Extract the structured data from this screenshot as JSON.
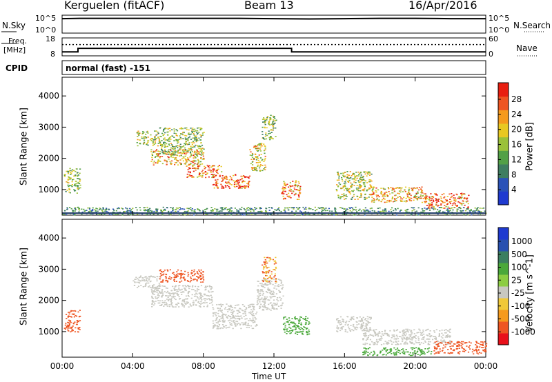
{
  "header": {
    "station": "Kerguelen (fitACF)",
    "beam": "Beam 13",
    "date": "16/Apr/2016"
  },
  "noise_panel": {
    "left_label": "N.Sky",
    "left_ticks": [
      "10^5",
      "10^0"
    ],
    "right_label": "N.Search",
    "right_ticks": [
      "10^5",
      "10^0"
    ],
    "series": {
      "sky": [
        [
          0,
          4.3
        ],
        [
          1,
          4.4
        ],
        [
          2,
          4.4
        ],
        [
          3,
          4.4
        ],
        [
          4,
          4.4
        ],
        [
          6,
          4.4
        ],
        [
          8,
          4.4
        ],
        [
          10,
          4.4
        ],
        [
          12,
          4.3
        ],
        [
          14,
          4.2
        ],
        [
          16,
          4.3
        ],
        [
          18,
          4.4
        ],
        [
          20,
          4.4
        ],
        [
          22,
          4.3
        ],
        [
          24,
          4.3
        ]
      ]
    }
  },
  "freq_panel": {
    "left_label_1": "Freq.",
    "left_label_2": "[MHz]",
    "left_ticks": [
      "18",
      "8"
    ],
    "right_label": "Nave",
    "right_ticks": [
      "60",
      "0"
    ],
    "series": {
      "freq": [
        [
          0,
          10.2
        ],
        [
          0.9,
          10.2
        ],
        [
          0.9,
          12.2
        ],
        [
          13.0,
          12.2
        ],
        [
          13.0,
          10.2
        ],
        [
          24,
          10.2
        ]
      ],
      "nave_dotted": [
        [
          0,
          14.3
        ],
        [
          24,
          14.3
        ]
      ]
    }
  },
  "cpid": {
    "label": "CPID",
    "value": "normal (fast) -151"
  },
  "chart_data": [
    {
      "type": "heatmap",
      "title": "",
      "xlabel": "Time UT",
      "ylabel": "Slant Range [km]",
      "xlim": [
        0,
        24
      ],
      "ylim": [
        180,
        4600
      ],
      "x_ticks": [
        "00:00",
        "04:00",
        "08:00",
        "12:00",
        "16:00",
        "20:00",
        "00:00"
      ],
      "y_ticks": [
        "1000",
        "2000",
        "3000",
        "4000"
      ],
      "colorbar": {
        "label": "Power [dB]",
        "ticks": [
          "28",
          "24",
          "20",
          "16",
          "12",
          "8",
          "4"
        ],
        "range": [
          0,
          30
        ]
      },
      "scatter_regions": [
        {
          "t0": 0.1,
          "t1": 1.0,
          "r0": 900,
          "r1": 1700,
          "value": 14
        },
        {
          "t0": 4.2,
          "t1": 5.5,
          "r0": 2400,
          "r1": 2900,
          "value": 16
        },
        {
          "t0": 5.5,
          "t1": 8.0,
          "r0": 2100,
          "r1": 3000,
          "value": 14
        },
        {
          "t0": 5.0,
          "t1": 8.0,
          "r0": 1800,
          "r1": 2300,
          "value": 20
        },
        {
          "t0": 7.0,
          "t1": 9.0,
          "r0": 1400,
          "r1": 1800,
          "value": 24
        },
        {
          "t0": 8.5,
          "t1": 10.6,
          "r0": 1050,
          "r1": 1500,
          "value": 26
        },
        {
          "t0": 10.6,
          "t1": 11.5,
          "r0": 1600,
          "r1": 2500,
          "value": 18
        },
        {
          "t0": 11.3,
          "t1": 12.1,
          "r0": 2600,
          "r1": 3400,
          "value": 14
        },
        {
          "t0": 12.4,
          "t1": 13.5,
          "r0": 700,
          "r1": 1300,
          "value": 22
        },
        {
          "t0": 15.5,
          "t1": 17.5,
          "r0": 700,
          "r1": 1600,
          "value": 16
        },
        {
          "t0": 17.5,
          "t1": 20.5,
          "r0": 600,
          "r1": 1100,
          "value": 20
        },
        {
          "t0": 20.5,
          "t1": 23.0,
          "r0": 400,
          "r1": 900,
          "value": 24
        },
        {
          "t0": 0,
          "t1": 24,
          "r0": 200,
          "r1": 450,
          "value": 10
        }
      ]
    },
    {
      "type": "heatmap",
      "title": "",
      "xlabel": "Time UT",
      "ylabel": "Slant Range [km]",
      "xlim": [
        0,
        24
      ],
      "ylim": [
        180,
        4600
      ],
      "x_ticks": [
        "00:00",
        "04:00",
        "08:00",
        "12:00",
        "16:00",
        "20:00",
        "00:00"
      ],
      "y_ticks": [
        "1000",
        "2000",
        "3000",
        "4000"
      ],
      "colorbar": {
        "label": "Velocity [m s^-1]",
        "ticks": [
          "1000",
          "500",
          "100",
          "25",
          "-25",
          "-100",
          "-500",
          "-1000"
        ]
      },
      "scatter_regions": [
        {
          "t0": 0.1,
          "t1": 1.0,
          "r0": 1000,
          "r1": 1700,
          "value": -200
        },
        {
          "t0": 4.0,
          "t1": 5.5,
          "r0": 2400,
          "r1": 2800,
          "value": 0
        },
        {
          "t0": 5.5,
          "t1": 8.0,
          "r0": 2600,
          "r1": 3000,
          "value": -150
        },
        {
          "t0": 5.0,
          "t1": 8.5,
          "r0": 1800,
          "r1": 2500,
          "value": 0
        },
        {
          "t0": 8.5,
          "t1": 11.0,
          "r0": 1100,
          "r1": 1900,
          "value": 0
        },
        {
          "t0": 11.0,
          "t1": 12.5,
          "r0": 1700,
          "r1": 2700,
          "value": 0
        },
        {
          "t0": 11.3,
          "t1": 12.1,
          "r0": 2600,
          "r1": 3400,
          "value": -100
        },
        {
          "t0": 12.5,
          "t1": 14.0,
          "r0": 900,
          "r1": 1500,
          "value": 150
        },
        {
          "t0": 15.5,
          "t1": 17.5,
          "r0": 1000,
          "r1": 1500,
          "value": 0
        },
        {
          "t0": 17.0,
          "t1": 22.0,
          "r0": 600,
          "r1": 1100,
          "value": 0
        },
        {
          "t0": 17.0,
          "t1": 21.0,
          "r0": 250,
          "r1": 500,
          "value": 150
        },
        {
          "t0": 21.0,
          "t1": 24.0,
          "r0": 300,
          "r1": 700,
          "value": -150
        }
      ]
    }
  ],
  "colors": {
    "power_scale": [
      "#1f3ad0",
      "#2a52b8",
      "#3e7d60",
      "#52a046",
      "#9ac13a",
      "#e8c822",
      "#f59a1d",
      "#ee5522",
      "#e81e10"
    ],
    "velocity_scale": [
      "#e8101a",
      "#ee5522",
      "#f59a1d",
      "#f0c838",
      "#c8c8c0",
      "#8ccd42",
      "#4aa83a",
      "#3b7e60",
      "#2850b0",
      "#1f3ad0"
    ]
  }
}
